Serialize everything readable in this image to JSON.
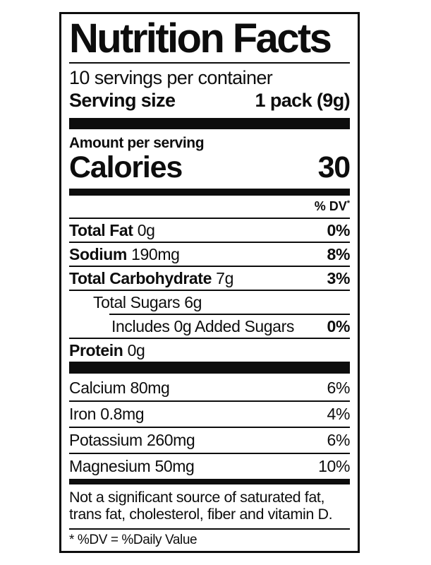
{
  "label": {
    "title": "Nutrition Facts",
    "servings_per_container": "10 servings per container",
    "serving_size_label": "Serving size",
    "serving_size_value": "1 pack (9g)",
    "amount_per_serving": "Amount per serving",
    "calories_label": "Calories",
    "calories_value": "30",
    "dv_header": "% DV",
    "dv_header_asterisk": "*",
    "nutrients": [
      {
        "name": "Total Fat",
        "amount": "0g",
        "dv": "0%"
      },
      {
        "name": "Sodium",
        "amount": "190mg",
        "dv": "8%"
      },
      {
        "name": "Total Carbohydrate",
        "amount": "7g",
        "dv": "3%"
      },
      {
        "name": "Total Sugars",
        "amount": "6g",
        "dv": ""
      },
      {
        "name": "Includes 0g Added Sugars",
        "amount": "",
        "dv": "0%"
      },
      {
        "name": "Protein",
        "amount": "0g",
        "dv": ""
      }
    ],
    "minerals": [
      {
        "name": "Calcium",
        "amount": "80mg",
        "dv": "6%"
      },
      {
        "name": "Iron",
        "amount": "0.8mg",
        "dv": "4%"
      },
      {
        "name": "Potassium",
        "amount": "260mg",
        "dv": "6%"
      },
      {
        "name": "Magnesium",
        "amount": "50mg",
        "dv": "10%"
      }
    ],
    "footnote_line1": "Not a significant source of saturated fat,",
    "footnote_line2": "trans fat, cholesterol, fiber and vitamin D.",
    "dv_definition": "* %DV = %Daily Value"
  },
  "colors": {
    "text": "#0d0d0d",
    "background": "#ffffff",
    "rule": "#0d0d0d"
  }
}
